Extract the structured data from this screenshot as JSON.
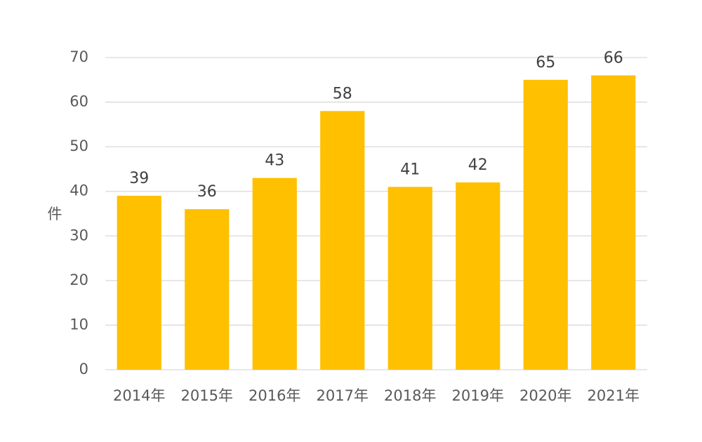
{
  "chart_data": {
    "type": "bar",
    "title": "",
    "xlabel": "",
    "ylabel": "件",
    "categories": [
      "2014年",
      "2015年",
      "2016年",
      "2017年",
      "2018年",
      "2019年",
      "2020年",
      "2021年"
    ],
    "values": [
      39,
      36,
      43,
      58,
      41,
      42,
      65,
      66
    ],
    "ylim": [
      0,
      70
    ],
    "yticks": [
      0,
      10,
      20,
      30,
      40,
      50,
      60,
      70
    ],
    "grid": true,
    "legend": "none",
    "data_labels": true,
    "bar_color": "#FFC000"
  }
}
